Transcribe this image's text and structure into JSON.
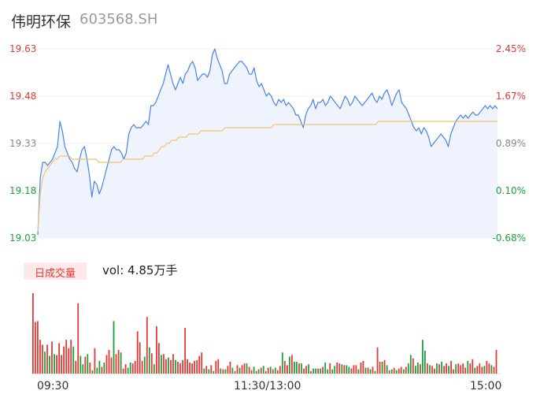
{
  "header": {
    "name": "伟明环保",
    "code": "603568.SH"
  },
  "colors": {
    "up": "#e53935",
    "down": "#1aa33a",
    "neutral": "#888888",
    "price_line": "#4a84e8",
    "avg_line": "#f2c46b",
    "fill": "#eef3fd"
  },
  "volume_panel": {
    "tab_label": "日成交量",
    "vol_text": "vol: 4.85万手"
  },
  "x_labels": {
    "open": "09:30",
    "mid": "11:30/13:00",
    "close": "15:00"
  },
  "chart_data": [
    {
      "type": "line",
      "title": "",
      "ylim": [
        19.03,
        19.63
      ],
      "y_ticks": [
        "19.63",
        "19.48",
        "19.33",
        "19.18",
        "19.03"
      ],
      "pct_ticks": [
        "2.45%",
        "1.67%",
        "0.89%",
        "0.10%",
        "-0.68%"
      ],
      "series": [
        {
          "values": [
            19.04,
            19.22,
            19.27,
            19.27,
            19.26,
            19.27,
            19.28,
            19.3,
            19.32,
            19.4,
            19.37,
            19.32,
            19.3,
            19.28,
            19.27,
            19.25,
            19.24,
            19.28,
            19.31,
            19.32,
            19.28,
            19.23,
            19.16,
            19.21,
            19.2,
            19.17,
            19.19,
            19.22,
            19.25,
            19.28,
            19.31,
            19.32,
            19.31,
            19.31,
            19.3,
            19.28,
            19.3,
            19.36,
            19.38,
            19.39,
            19.38,
            19.38,
            19.38,
            19.39,
            19.4,
            19.39,
            19.45,
            19.45,
            19.46,
            19.48,
            19.5,
            19.52,
            19.55,
            19.58,
            19.55,
            19.52,
            19.5,
            19.52,
            19.54,
            19.52,
            19.55,
            19.56,
            19.58,
            19.59,
            19.57,
            19.53,
            19.54,
            19.55,
            19.55,
            19.54,
            19.56,
            19.61,
            19.63,
            19.6,
            19.58,
            19.56,
            19.52,
            19.52,
            19.55,
            19.56,
            19.57,
            19.58,
            19.59,
            19.59,
            19.58,
            19.57,
            19.55,
            19.55,
            19.57,
            19.53,
            19.51,
            19.52,
            19.5,
            19.48,
            19.49,
            19.48,
            19.46,
            19.45,
            19.47,
            19.46,
            19.47,
            19.45,
            19.46,
            19.45,
            19.44,
            19.42,
            19.42,
            19.4,
            19.38,
            19.42,
            19.44,
            19.45,
            19.47,
            19.44,
            19.46,
            19.46,
            19.47,
            19.45,
            19.46,
            19.48,
            19.47,
            19.46,
            19.45,
            19.44,
            19.46,
            19.48,
            19.47,
            19.45,
            19.46,
            19.48,
            19.47,
            19.46,
            19.45,
            19.46,
            19.47,
            19.48,
            19.49,
            19.47,
            19.46,
            19.48,
            19.47,
            19.49,
            19.5,
            19.48,
            19.45,
            19.47,
            19.49,
            19.5,
            19.46,
            19.45,
            19.44,
            19.42,
            19.4,
            19.38,
            19.37,
            19.38,
            19.36,
            19.38,
            19.37,
            19.35,
            19.32,
            19.33,
            19.34,
            19.35,
            19.36,
            19.35,
            19.34,
            19.32,
            19.36,
            19.38,
            19.4,
            19.41,
            19.42,
            19.41,
            19.42,
            19.41,
            19.42,
            19.43,
            19.42,
            19.42,
            19.43,
            19.44,
            19.45,
            19.44,
            19.45,
            19.44,
            19.45,
            19.44
          ]
        },
        {
          "values": [
            19.05,
            19.17,
            19.22,
            19.24,
            19.25,
            19.26,
            19.27,
            19.28,
            19.28,
            19.29,
            19.29,
            19.29,
            19.29,
            19.29,
            19.28,
            19.28,
            19.28,
            19.28,
            19.28,
            19.28,
            19.28,
            19.28,
            19.28,
            19.28,
            19.28,
            19.27,
            19.27,
            19.27,
            19.27,
            19.27,
            19.27,
            19.27,
            19.27,
            19.27,
            19.27,
            19.28,
            19.28,
            19.28,
            19.28,
            19.28,
            19.28,
            19.28,
            19.28,
            19.28,
            19.29,
            19.29,
            19.29,
            19.29,
            19.3,
            19.3,
            19.31,
            19.32,
            19.32,
            19.33,
            19.33,
            19.34,
            19.34,
            19.34,
            19.35,
            19.35,
            19.35,
            19.35,
            19.36,
            19.36,
            19.36,
            19.36,
            19.36,
            19.37,
            19.37,
            19.37,
            19.37,
            19.37,
            19.37,
            19.37,
            19.37,
            19.37,
            19.37,
            19.38,
            19.38,
            19.38,
            19.38,
            19.38,
            19.38,
            19.38,
            19.38,
            19.38,
            19.38,
            19.38,
            19.38,
            19.38,
            19.38,
            19.38,
            19.38,
            19.38,
            19.38,
            19.38,
            19.38,
            19.39,
            19.39,
            19.39,
            19.39,
            19.39,
            19.39,
            19.39,
            19.39,
            19.39,
            19.39,
            19.39,
            19.39,
            19.39,
            19.39,
            19.39,
            19.39,
            19.39,
            19.39,
            19.39,
            19.39,
            19.39,
            19.39,
            19.39,
            19.39,
            19.39,
            19.39,
            19.39,
            19.39,
            19.39,
            19.39,
            19.39,
            19.39,
            19.39,
            19.39,
            19.39,
            19.39,
            19.39,
            19.39,
            19.39,
            19.39,
            19.39,
            19.39,
            19.39,
            19.4,
            19.4,
            19.4,
            19.4,
            19.4,
            19.4,
            19.4,
            19.4,
            19.4,
            19.4,
            19.4,
            19.4,
            19.4,
            19.4,
            19.4,
            19.4,
            19.4,
            19.4,
            19.4,
            19.4,
            19.4,
            19.4,
            19.4,
            19.4,
            19.4,
            19.4,
            19.4,
            19.4,
            19.4,
            19.4,
            19.4,
            19.4,
            19.4,
            19.4,
            19.4,
            19.4,
            19.4,
            19.4,
            19.4,
            19.4,
            19.4,
            19.4,
            19.4,
            19.4,
            19.4,
            19.4,
            19.4,
            19.4,
            19.4,
            19.4
          ]
        }
      ]
    },
    {
      "type": "bar",
      "title": "",
      "values": [
        95,
        61,
        62,
        40,
        34,
        26,
        34,
        21,
        38,
        23,
        22,
        36,
        22,
        32,
        40,
        30,
        40,
        32,
        15,
        83,
        21,
        11,
        20,
        23,
        13,
        4,
        30,
        7,
        15,
        8,
        13,
        22,
        28,
        19,
        62,
        23,
        28,
        25,
        6,
        11,
        7,
        13,
        12,
        15,
        50,
        37,
        15,
        20,
        67,
        31,
        24,
        11,
        56,
        36,
        22,
        23,
        17,
        19,
        16,
        23,
        16,
        14,
        12,
        16,
        54,
        17,
        13,
        12,
        15,
        16,
        21,
        25,
        6,
        9,
        5,
        10,
        3,
        15,
        17,
        6,
        5,
        5,
        9,
        14,
        7,
        3,
        10,
        7,
        10,
        12,
        12,
        8,
        4,
        8,
        3,
        5,
        7,
        9,
        3,
        7,
        8,
        5,
        7,
        4,
        9,
        25,
        15,
        10,
        20,
        22,
        14,
        14,
        12,
        12,
        6,
        9,
        11,
        3,
        6,
        6,
        6,
        6,
        8,
        13,
        5,
        12,
        5,
        9,
        13,
        12,
        11,
        10,
        10,
        8,
        6,
        10,
        10,
        5,
        13,
        15,
        7,
        7,
        5,
        8,
        3,
        31,
        14,
        14,
        16,
        10,
        4,
        5,
        7,
        4,
        6,
        8,
        5,
        8,
        12,
        22,
        18,
        9,
        13,
        11,
        40,
        27,
        12,
        10,
        9,
        6,
        12,
        11,
        14,
        9,
        12,
        9,
        15,
        5,
        11,
        12,
        10,
        12,
        7,
        15,
        12,
        17,
        7,
        9,
        12,
        8,
        9,
        15,
        12,
        10,
        8,
        28
      ],
      "up": [
        1,
        1,
        1,
        1,
        1,
        0,
        1,
        0,
        1,
        0,
        1,
        1,
        1,
        1,
        1,
        1,
        1,
        0,
        1,
        1,
        0,
        0,
        1,
        0,
        1,
        0,
        1,
        0,
        0,
        1,
        0,
        1,
        1,
        1,
        0,
        1,
        1,
        0,
        1,
        1,
        0,
        0,
        1,
        1,
        1,
        1,
        1,
        0,
        1,
        0,
        1,
        0,
        1,
        1,
        0,
        1,
        1,
        0,
        1,
        1,
        0,
        1,
        1,
        1,
        1,
        1,
        1,
        1,
        1,
        1,
        1,
        1,
        0,
        1,
        0,
        1,
        0,
        1,
        1,
        0,
        1,
        0,
        1,
        1,
        0,
        1,
        1,
        0,
        1,
        1,
        0,
        1,
        1,
        0,
        1,
        0,
        1,
        0,
        1,
        1,
        0,
        1,
        0,
        1,
        1,
        0,
        1,
        1,
        0,
        1,
        0,
        0,
        1,
        0,
        1,
        1,
        0,
        1,
        0,
        0,
        1,
        0,
        1,
        0,
        0,
        1,
        0,
        0,
        1,
        1,
        0,
        1,
        0,
        0,
        1,
        1,
        1,
        0,
        1,
        1,
        0,
        1,
        0,
        1,
        0,
        1,
        1,
        0,
        1,
        0,
        1,
        0,
        1,
        0,
        1,
        1,
        0,
        1,
        0,
        0,
        1,
        0,
        0,
        1,
        0,
        0,
        1,
        0,
        1,
        1,
        0,
        1,
        0,
        1,
        1,
        0,
        1,
        1,
        0,
        1,
        1,
        1,
        1,
        0,
        1,
        1,
        0,
        1,
        1,
        1,
        0,
        1,
        1,
        0,
        1,
        1,
        0,
        1
      ]
    }
  ]
}
